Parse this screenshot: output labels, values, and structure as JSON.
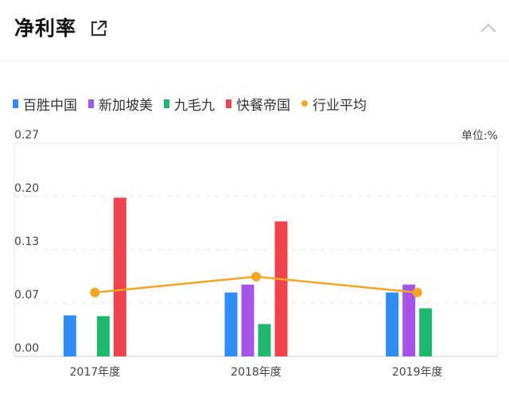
{
  "header": {
    "title": "净利率",
    "external_link_icon": "external-link-icon",
    "collapse_icon": "chevron-up-icon"
  },
  "unit_label": "单位:%",
  "colors": {
    "百胜中国": "#2f8df5",
    "新加坡美": "#a653e8",
    "九毛九": "#1db86e",
    "快餐帝国": "#f0434b",
    "行业平均": "#f5a623"
  },
  "chart_data": {
    "type": "bar",
    "categories": [
      "2017年度",
      "2018年度",
      "2019年度"
    ],
    "yticks": [
      "0.27",
      "0.20",
      "0.13",
      "0.07",
      "0.00"
    ],
    "ylim": [
      0,
      0.27
    ],
    "legend_position": "top-left",
    "series": [
      {
        "name": "百胜中国",
        "type": "bar",
        "values": [
          0.052,
          0.081,
          0.081
        ]
      },
      {
        "name": "新加坡美",
        "type": "bar",
        "values": [
          null,
          0.091,
          0.091
        ]
      },
      {
        "name": "九毛九",
        "type": "bar",
        "values": [
          0.051,
          0.041,
          0.061
        ]
      },
      {
        "name": "快餐帝国",
        "type": "bar",
        "values": [
          0.201,
          0.171,
          null
        ]
      },
      {
        "name": "行业平均",
        "type": "line",
        "values": [
          0.081,
          0.101,
          0.081
        ]
      }
    ],
    "grid": true
  }
}
